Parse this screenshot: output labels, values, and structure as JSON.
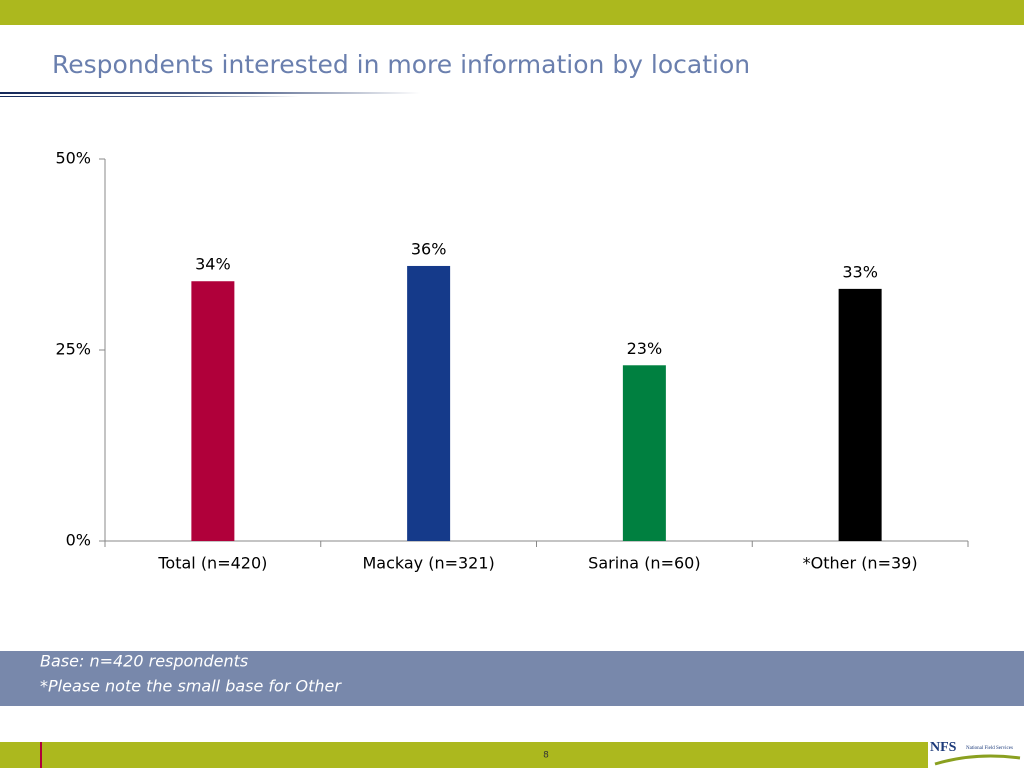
{
  "chart_data": {
    "type": "bar",
    "title": "Respondents interested in more information by location",
    "categories": [
      "Total (n=420)",
      "Mackay (n=321)",
      "Sarina (n=60)",
      "*Other (n=39)"
    ],
    "values": [
      34,
      36,
      23,
      33
    ],
    "value_labels": [
      "34%",
      "36%",
      "23%",
      "33%"
    ],
    "colors": [
      "#b0003a",
      "#153a8a",
      "#008040",
      "#000000"
    ],
    "ylim": [
      0,
      50
    ],
    "yticks": [
      {
        "value": 0,
        "label": "0%"
      },
      {
        "value": 25,
        "label": "25%"
      },
      {
        "value": 50,
        "label": "50%"
      }
    ],
    "grid": false
  },
  "footer": {
    "notes": [
      "Base: n=420 respondents",
      "*Please note the small base for Other"
    ],
    "page_number": "8"
  },
  "logo": {
    "text": "NFS",
    "subtitle": "National Field Services"
  }
}
